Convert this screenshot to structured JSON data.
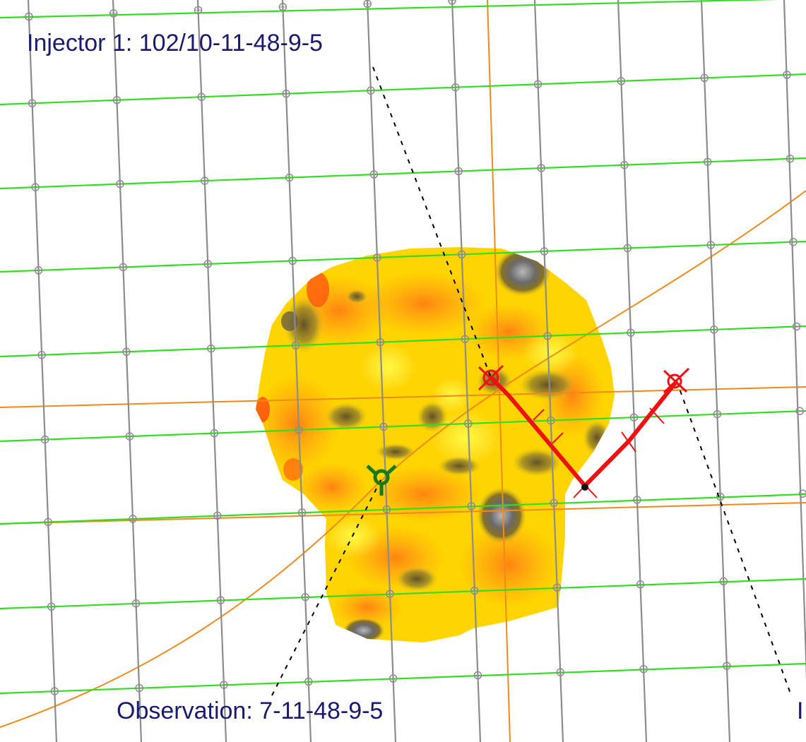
{
  "labels": {
    "injector": "Injector 1: 102/10-11-48-9-5",
    "observation": "Observation: 7-11-48-9-5",
    "edge_partial": "I"
  },
  "colors": {
    "grid_vertical": "#8c8c8c",
    "grid_horizontal": "#33dd22",
    "section_lines": "#f08a1c",
    "well_path_injector": "#ee1111",
    "well_symbol_observation": "#1a7a1a",
    "dashed_link": "#000000",
    "label_text": "#1a1a6e"
  },
  "icons": {
    "injector_well": "injector-well-icon",
    "observation_well": "observation-well-icon",
    "grid_node": "grid-node-icon"
  }
}
